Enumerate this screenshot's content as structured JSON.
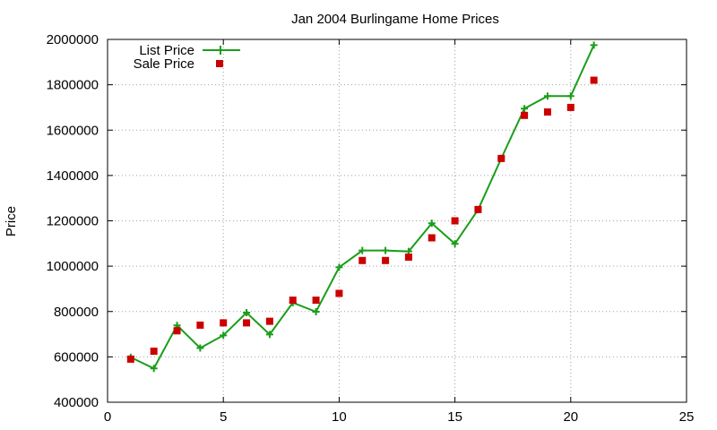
{
  "chart_data": {
    "type": "line",
    "title": "Jan 2004 Burlingame Home Prices",
    "xlabel": "",
    "ylabel": "Price",
    "xlim": [
      0,
      25
    ],
    "ylim": [
      400000,
      2000000
    ],
    "xticks": [
      0,
      5,
      10,
      15,
      20,
      25
    ],
    "yticks": [
      400000,
      600000,
      800000,
      1000000,
      1200000,
      1400000,
      1600000,
      1800000,
      2000000
    ],
    "grid": true,
    "legend_position": "top-left",
    "series": [
      {
        "name": "List Price",
        "style": "line-with-plus-markers",
        "color": "#1a9e1a",
        "x": [
          1,
          2,
          3,
          4,
          5,
          6,
          7,
          8,
          9,
          10,
          11,
          12,
          13,
          14,
          15,
          16,
          17,
          18,
          19,
          20,
          21
        ],
        "y": [
          598000,
          549000,
          739000,
          639000,
          695000,
          795000,
          699000,
          839000,
          799000,
          995000,
          1069000,
          1069000,
          1065000,
          1189000,
          1099000,
          1249000,
          1475000,
          1695000,
          1750000,
          1750000,
          1975000
        ]
      },
      {
        "name": "Sale Price",
        "style": "square-markers",
        "color": "#cc0000",
        "x": [
          1,
          2,
          3,
          4,
          5,
          6,
          7,
          8,
          9,
          10,
          11,
          12,
          13,
          14,
          15,
          16,
          17,
          18,
          19,
          20,
          21
        ],
        "y": [
          590000,
          625000,
          715000,
          740000,
          750000,
          750000,
          757000,
          850000,
          850000,
          880000,
          1025000,
          1025000,
          1040000,
          1125000,
          1200000,
          1250000,
          1475000,
          1665000,
          1680000,
          1700000,
          1820000
        ]
      }
    ]
  }
}
